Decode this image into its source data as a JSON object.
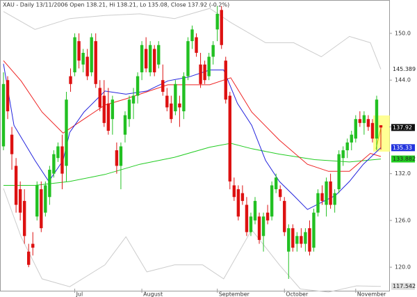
{
  "chart_data": {
    "type": "candlestick",
    "title": "XAU - Daily 13/11/2006 Open 138.21, Hi 138.21, Lo 135.08, Close 137.92 (-0.2%)",
    "open": [
      135.5,
      144,
      137,
      133,
      130,
      128.5,
      122,
      123,
      126.5,
      130,
      127,
      129,
      132,
      134,
      135.5,
      133,
      144.5,
      145,
      149,
      146,
      147,
      145,
      149,
      143,
      142,
      141,
      139,
      135,
      133,
      137,
      139,
      141,
      142,
      145,
      148,
      145,
      148,
      146,
      144,
      142,
      141,
      140,
      141,
      140,
      144.5,
      149,
      149.5,
      146,
      146,
      144.5,
      147,
      150.5,
      153,
      146.5,
      142,
      130.5,
      130,
      129.5,
      128,
      124.5,
      126,
      126.5,
      124,
      127,
      126.5,
      130,
      130,
      128.5,
      122,
      125,
      123,
      124,
      123,
      125,
      122.5,
      127,
      129.5,
      128,
      131,
      128,
      130,
      134,
      135,
      136,
      136.5,
      139,
      138.5,
      139,
      138.5,
      136.5,
      138.21
    ],
    "high": [
      145,
      144.5,
      138,
      134,
      131,
      130,
      123,
      124.5,
      131,
      131,
      131,
      133,
      135,
      136,
      137,
      142.5,
      145.5,
      150,
      150,
      148,
      148,
      150,
      150,
      144,
      144,
      143,
      142,
      136,
      136,
      140,
      142,
      143,
      145,
      149,
      149.5,
      149,
      148.5,
      149,
      146,
      143,
      142,
      144,
      142,
      145,
      149.5,
      151,
      150,
      147.5,
      146.5,
      147.5,
      149,
      153.5,
      153.5,
      147,
      142.5,
      131.5,
      130.5,
      130.5,
      129,
      127,
      129,
      127,
      127,
      128,
      131,
      132,
      130.5,
      129,
      125.5,
      125.5,
      124.5,
      125,
      125,
      126,
      127.5,
      130,
      130.5,
      131.5,
      132,
      130,
      135,
      135.5,
      136.5,
      137.5,
      139.5,
      140,
      140,
      139.5,
      139,
      142,
      138.21
    ],
    "low": [
      135,
      139,
      132.5,
      127,
      126,
      123,
      120,
      121.5,
      126,
      124.5,
      126.5,
      128,
      131.5,
      133.5,
      130,
      131,
      142.5,
      144.5,
      145.5,
      145,
      144,
      144.5,
      143,
      140,
      138,
      137,
      137,
      132,
      130,
      136,
      138,
      139,
      141,
      144,
      145,
      144.5,
      144.5,
      145.5,
      142,
      140,
      138.5,
      139.5,
      138,
      139,
      144,
      148,
      147,
      143,
      143.5,
      144,
      146,
      149,
      148,
      141,
      130,
      128.5,
      126,
      128,
      124,
      124,
      125.5,
      123,
      122,
      125.5,
      126,
      129.5,
      128.5,
      124,
      118.5,
      122,
      122,
      122.5,
      122,
      121.5,
      122,
      126.5,
      128,
      126.5,
      127.5,
      127,
      129.5,
      133,
      134,
      135,
      136,
      138,
      137,
      137.5,
      136,
      135,
      135.08
    ],
    "close": [
      143.5,
      140,
      134.5,
      128,
      127,
      124,
      120.3,
      122.5,
      130.5,
      125,
      130.5,
      132.5,
      134.5,
      135.5,
      132,
      141.5,
      143.5,
      149.5,
      146.5,
      147.5,
      144.5,
      149.5,
      143.5,
      140.5,
      138.5,
      137.5,
      141.5,
      133,
      135.5,
      139.5,
      141.5,
      142,
      144.5,
      148.5,
      145.5,
      148.5,
      145,
      148.5,
      142.5,
      140.5,
      139,
      143.5,
      140.5,
      144.5,
      149,
      150.5,
      147.5,
      143.5,
      144,
      147,
      148.5,
      152.5,
      148.5,
      141.5,
      131,
      129,
      126.5,
      128.5,
      124.5,
      126.5,
      128.5,
      123.5,
      126.5,
      126,
      130.5,
      131.5,
      129,
      124.5,
      125,
      122.5,
      124,
      123,
      124.5,
      122,
      127,
      129.5,
      128.5,
      131,
      128,
      129.5,
      134.5,
      135,
      136,
      137,
      139,
      138.5,
      139.5,
      138,
      136.5,
      141.5,
      137.92
    ],
    "up_color": "#22c022",
    "down_color": "#dd1111",
    "ylim": [
      116.8,
      154.1
    ],
    "yticks": [
      {
        "value": 120,
        "label": "120.0"
      },
      {
        "value": 126,
        "label": "126.0"
      },
      {
        "value": 132,
        "label": "132.0"
      },
      {
        "value": 138,
        "label": "138.0"
      },
      {
        "value": 144,
        "label": "144.0"
      },
      {
        "value": 150,
        "label": "150.0"
      }
    ],
    "xticks": [
      {
        "value": 17,
        "label": "Jul"
      },
      {
        "value": 33,
        "label": "August"
      },
      {
        "value": 51,
        "label": "September"
      },
      {
        "value": 67,
        "label": "October"
      },
      {
        "value": 84,
        "label": "November"
      }
    ],
    "lines": [
      {
        "color": "#cccccc",
        "x": [
          0,
          7.5,
          15.8,
          24.2,
          32.5,
          40.8,
          49.2,
          54.2,
          62.5,
          69.2,
          75.8,
          82.5,
          87.5,
          90
        ],
        "values": [
          152.8,
          150.5,
          151.9,
          152.3,
          152.5,
          151.9,
          153.2,
          151.4,
          148.8,
          148.8,
          147,
          149.6,
          148.8,
          145.389
        ]
      },
      {
        "color": "#cccccc",
        "x": [
          0,
          4.2,
          9.2,
          15.8,
          24.2,
          29.2,
          34.2,
          40.8,
          47.5,
          52.5,
          59.2,
          65.8,
          70.8,
          77.5,
          84.2,
          90
        ],
        "values": [
          130.1,
          123.9,
          118.5,
          117.5,
          120.3,
          123.9,
          119.4,
          120.3,
          120.3,
          118.5,
          124.8,
          120.3,
          117.2,
          116.8,
          117.6,
          117.542
        ]
      },
      {
        "color": "#22cc22",
        "x": [
          0,
          7.5,
          15.8,
          24.2,
          32.5,
          40.8,
          49.2,
          54.2,
          59.2,
          65.8,
          74.2,
          82.5,
          90
        ],
        "values": [
          130.5,
          130.5,
          131,
          131.9,
          133.2,
          134.1,
          135.4,
          135.9,
          135.2,
          134.5,
          133.8,
          133.5,
          133.882
        ]
      },
      {
        "color": "#ee2222",
        "x": [
          0,
          4.2,
          9.2,
          14.2,
          19.2,
          24.2,
          29.2,
          34.2,
          39.2,
          44.2,
          49.2,
          54.2,
          59.2,
          65.8,
          72.5,
          77.5,
          82.5,
          87.5,
          90
        ],
        "values": [
          146.5,
          143.9,
          139.9,
          137.2,
          139,
          140.8,
          141.6,
          142.5,
          143.4,
          143.4,
          143.4,
          144.3,
          139.9,
          136.3,
          133.2,
          132.3,
          132.3,
          134.6,
          134.2
        ]
      },
      {
        "color": "#2222dd",
        "x": [
          0,
          2.5,
          7.5,
          10.8,
          14.2,
          15.8,
          19.2,
          24.2,
          29.2,
          34.2,
          39.2,
          44.2,
          49.2,
          52.5,
          55.8,
          59.2,
          62.5,
          65.8,
          69.2,
          72.5,
          75.8,
          79.2,
          82.5,
          85.8,
          90
        ],
        "values": [
          146.1,
          138.2,
          133.7,
          131,
          133.7,
          137.3,
          139.9,
          142.6,
          142.2,
          142.6,
          143.9,
          144.4,
          145.3,
          145.3,
          141,
          138.2,
          133.7,
          131,
          129.2,
          127.4,
          128.3,
          129.2,
          131,
          133.2,
          135.33
        ]
      }
    ],
    "price_labels": [
      {
        "value": 145.389,
        "color": "#ffffff"
      },
      {
        "value": 137.92,
        "color": "#111111"
      },
      {
        "value": 135.33,
        "color": "#2233dd"
      },
      {
        "value": 133.882,
        "color": "#22cc22"
      },
      {
        "value": 117.542,
        "color": "#dddddd"
      }
    ]
  }
}
